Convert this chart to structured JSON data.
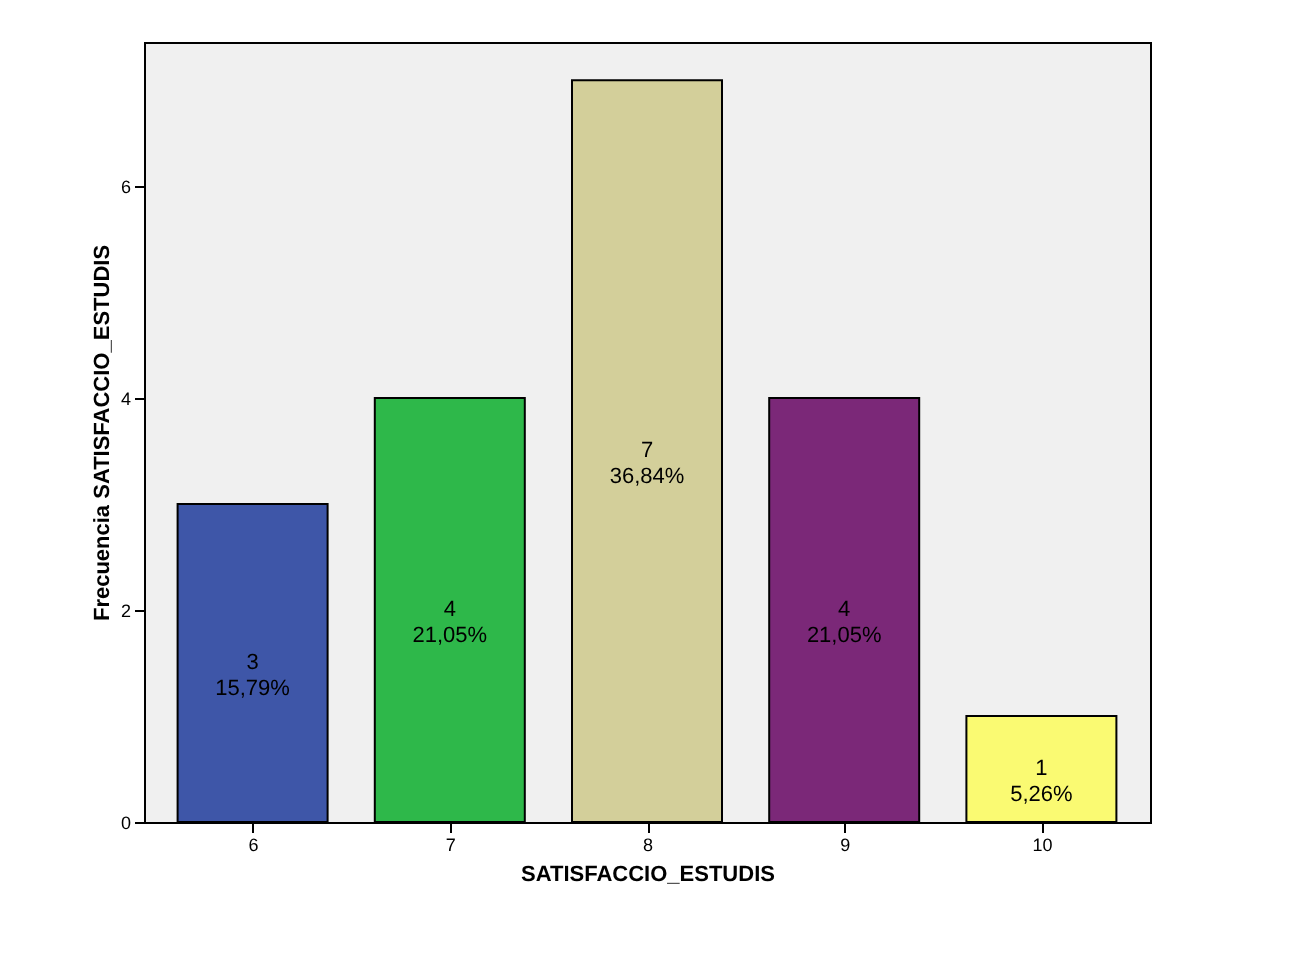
{
  "chart_data": {
    "type": "bar",
    "xlabel": "SATISFACCIO_ESTUDIS",
    "ylabel": "Frecuencia SATISFACCIO_ESTUDIS",
    "categories": [
      "6",
      "7",
      "8",
      "9",
      "10"
    ],
    "values": [
      3,
      4,
      7,
      4,
      1
    ],
    "colors": [
      "#3e56a8",
      "#2eb84a",
      "#d3cf9a",
      "#7b2878",
      "#fafa72"
    ],
    "value_labels": [
      "3\n15,79%",
      "4\n21,05%",
      "7\n36,84%",
      "4\n21,05%",
      "1\n5,26%"
    ],
    "ylim": [
      0,
      7.36
    ],
    "yticks": [
      0,
      2,
      4,
      6
    ],
    "grid": false
  }
}
